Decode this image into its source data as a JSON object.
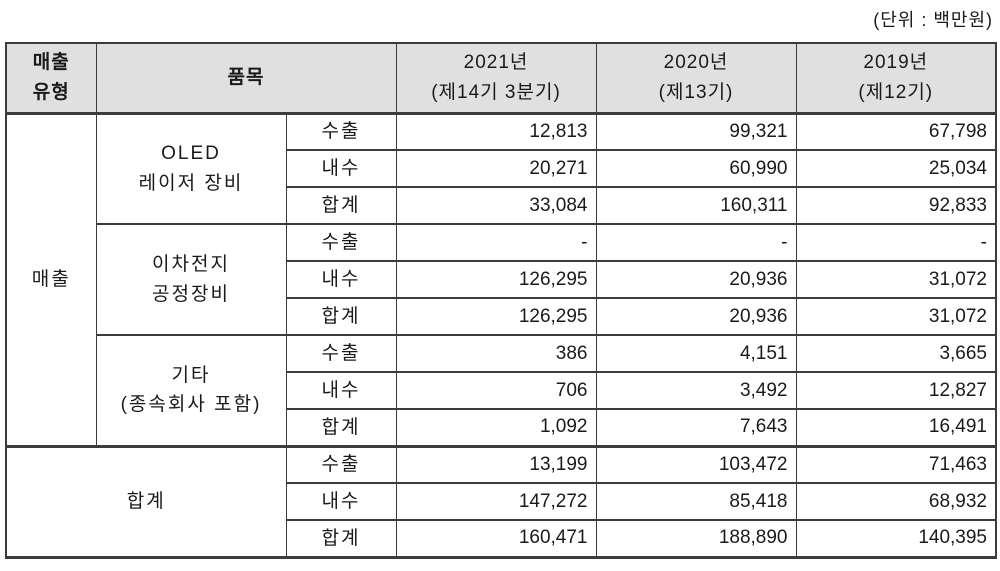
{
  "unit_label": "(단위 : 백만원)",
  "header": {
    "sales_type_line1": "매출",
    "sales_type_line2": "유형",
    "item_label": "품목",
    "year_columns": [
      {
        "year": "2021년",
        "period": "(제14기 3분기)"
      },
      {
        "year": "2020년",
        "period": "(제13기)"
      },
      {
        "year": "2019년",
        "period": "(제12기)"
      }
    ]
  },
  "body": {
    "sales_type_label": "매출",
    "groups": [
      {
        "name_line1": "OLED",
        "name_line2": "레이저 장비",
        "rows": [
          {
            "channel": "수출",
            "v2021": "12,813",
            "v2020": "99,321",
            "v2019": "67,798"
          },
          {
            "channel": "내수",
            "v2021": "20,271",
            "v2020": "60,990",
            "v2019": "25,034"
          },
          {
            "channel": "합계",
            "v2021": "33,084",
            "v2020": "160,311",
            "v2019": "92,833"
          }
        ]
      },
      {
        "name_line1": "이차전지",
        "name_line2": "공정장비",
        "rows": [
          {
            "channel": "수출",
            "v2021": "-",
            "v2020": "-",
            "v2019": "-"
          },
          {
            "channel": "내수",
            "v2021": "126,295",
            "v2020": "20,936",
            "v2019": "31,072"
          },
          {
            "channel": "합계",
            "v2021": "126,295",
            "v2020": "20,936",
            "v2019": "31,072"
          }
        ]
      },
      {
        "name_line1": "기타",
        "name_line2": "(종속회사 포함)",
        "rows": [
          {
            "channel": "수출",
            "v2021": "386",
            "v2020": "4,151",
            "v2019": "3,665"
          },
          {
            "channel": "내수",
            "v2021": "706",
            "v2020": "3,492",
            "v2019": "12,827"
          },
          {
            "channel": "합계",
            "v2021": "1,092",
            "v2020": "7,643",
            "v2019": "16,491"
          }
        ]
      }
    ],
    "total": {
      "label": "합계",
      "rows": [
        {
          "channel": "수출",
          "v2021": "13,199",
          "v2020": "103,472",
          "v2019": "71,463"
        },
        {
          "channel": "내수",
          "v2021": "147,272",
          "v2020": "85,418",
          "v2019": "68,932"
        },
        {
          "channel": "합계",
          "v2021": "160,471",
          "v2020": "188,890",
          "v2019": "140,395"
        }
      ]
    }
  },
  "colors": {
    "header_bg": "#e0e0e0",
    "border": "#3c3c3c",
    "text": "#1a1a1a"
  }
}
